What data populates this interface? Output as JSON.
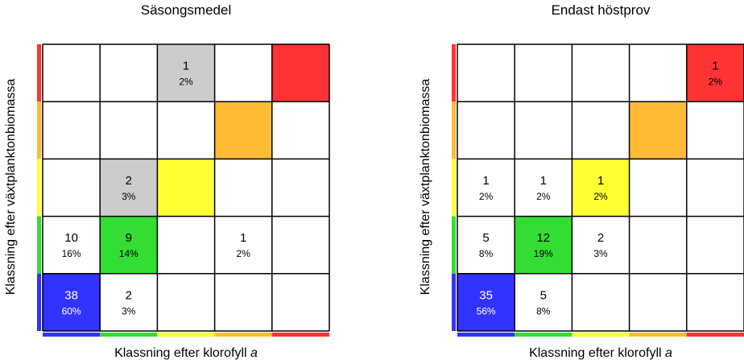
{
  "colors": {
    "blue": "#3333ff",
    "green": "#33dd33",
    "yellow": "#ffff33",
    "orange": "#ffbb33",
    "red": "#ff3333",
    "gray": "#cccccc"
  },
  "class_colors": [
    "#3333ff",
    "#33dd33",
    "#ffff33",
    "#ffbb33",
    "#ff3333"
  ],
  "chart_data": [
    {
      "type": "heatmap",
      "title": "Säsongsmedel",
      "xlabel_prefix": "Klassning efter klorofyll ",
      "xlabel_var": "a",
      "ylabel": "Klassning efter växtplanktonbiomassa",
      "grid": "5x5",
      "cells": [
        {
          "row": 0,
          "col": 2,
          "count": "1",
          "pct": "2%",
          "fill": "gray"
        },
        {
          "row": 0,
          "col": 4,
          "count": "",
          "pct": "",
          "fill": "red"
        },
        {
          "row": 1,
          "col": 3,
          "count": "",
          "pct": "",
          "fill": "orange"
        },
        {
          "row": 2,
          "col": 1,
          "count": "2",
          "pct": "3%",
          "fill": "gray"
        },
        {
          "row": 2,
          "col": 2,
          "count": "",
          "pct": "",
          "fill": "yellow"
        },
        {
          "row": 3,
          "col": 0,
          "count": "10",
          "pct": "16%",
          "fill": "none"
        },
        {
          "row": 3,
          "col": 1,
          "count": "9",
          "pct": "14%",
          "fill": "green"
        },
        {
          "row": 3,
          "col": 3,
          "count": "1",
          "pct": "2%",
          "fill": "none"
        },
        {
          "row": 4,
          "col": 0,
          "count": "38",
          "pct": "60%",
          "fill": "blue",
          "white_text": true
        },
        {
          "row": 4,
          "col": 1,
          "count": "2",
          "pct": "3%",
          "fill": "none"
        }
      ]
    },
    {
      "type": "heatmap",
      "title": "Endast höstprov",
      "xlabel_prefix": "Klassning efter klorofyll ",
      "xlabel_var": "a",
      "ylabel": "Klassning efter växtplanktonbiomassa",
      "grid": "5x5",
      "cells": [
        {
          "row": 0,
          "col": 4,
          "count": "1",
          "pct": "2%",
          "fill": "red"
        },
        {
          "row": 1,
          "col": 3,
          "count": "",
          "pct": "",
          "fill": "orange"
        },
        {
          "row": 2,
          "col": 0,
          "count": "1",
          "pct": "2%",
          "fill": "none"
        },
        {
          "row": 2,
          "col": 1,
          "count": "1",
          "pct": "2%",
          "fill": "none"
        },
        {
          "row": 2,
          "col": 2,
          "count": "1",
          "pct": "2%",
          "fill": "yellow"
        },
        {
          "row": 3,
          "col": 0,
          "count": "5",
          "pct": "8%",
          "fill": "none"
        },
        {
          "row": 3,
          "col": 1,
          "count": "12",
          "pct": "19%",
          "fill": "green"
        },
        {
          "row": 3,
          "col": 2,
          "count": "2",
          "pct": "3%",
          "fill": "none"
        },
        {
          "row": 4,
          "col": 0,
          "count": "35",
          "pct": "56%",
          "fill": "blue",
          "white_text": true
        },
        {
          "row": 4,
          "col": 1,
          "count": "5",
          "pct": "8%",
          "fill": "none"
        }
      ]
    }
  ]
}
